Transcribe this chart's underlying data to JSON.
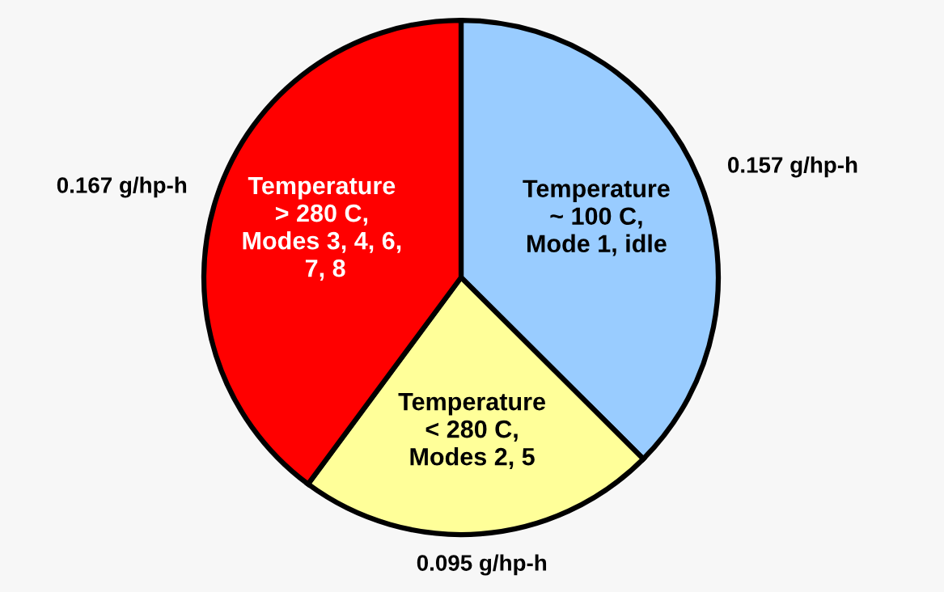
{
  "chart_data": {
    "type": "pie",
    "categories": [
      "Temperature\n~ 100 C,\nMode 1, idle",
      "Temperature\n< 280 C,\nModes 2, 5",
      "Temperature\n> 280 C,\nModes 3, 4, 6,\n 7, 8"
    ],
    "values": [
      0.157,
      0.095,
      0.167
    ],
    "colors": [
      "#99ccff",
      "#ffff99",
      "#ff0000"
    ],
    "value_labels": [
      "0.157 g/hp-h",
      "0.095 g/hp-h",
      "0.167 g/hp-h"
    ]
  }
}
